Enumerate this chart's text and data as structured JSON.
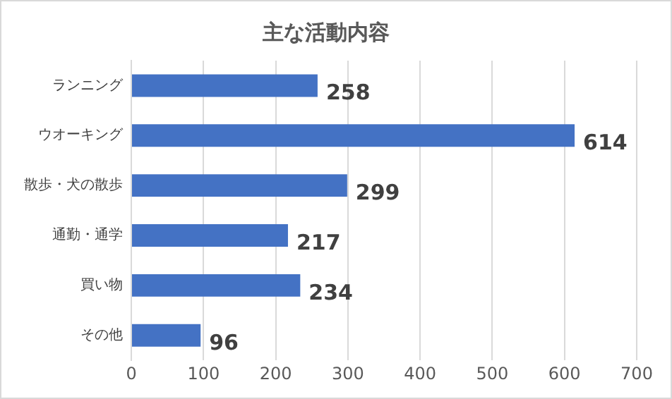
{
  "chart_data": {
    "type": "bar",
    "orientation": "horizontal",
    "title": "主な活動内容",
    "categories": [
      "ランニング",
      "ウオーキング",
      "散歩・犬の散歩",
      "通勤・通学",
      "買い物",
      "その他"
    ],
    "values": [
      258,
      614,
      299,
      217,
      234,
      96
    ],
    "color": "#4472c4",
    "xlim": [
      0,
      700
    ],
    "xticks": [
      0,
      100,
      200,
      300,
      400,
      500,
      600,
      700
    ],
    "grid": "x",
    "data_labels": true,
    "legend": false
  }
}
